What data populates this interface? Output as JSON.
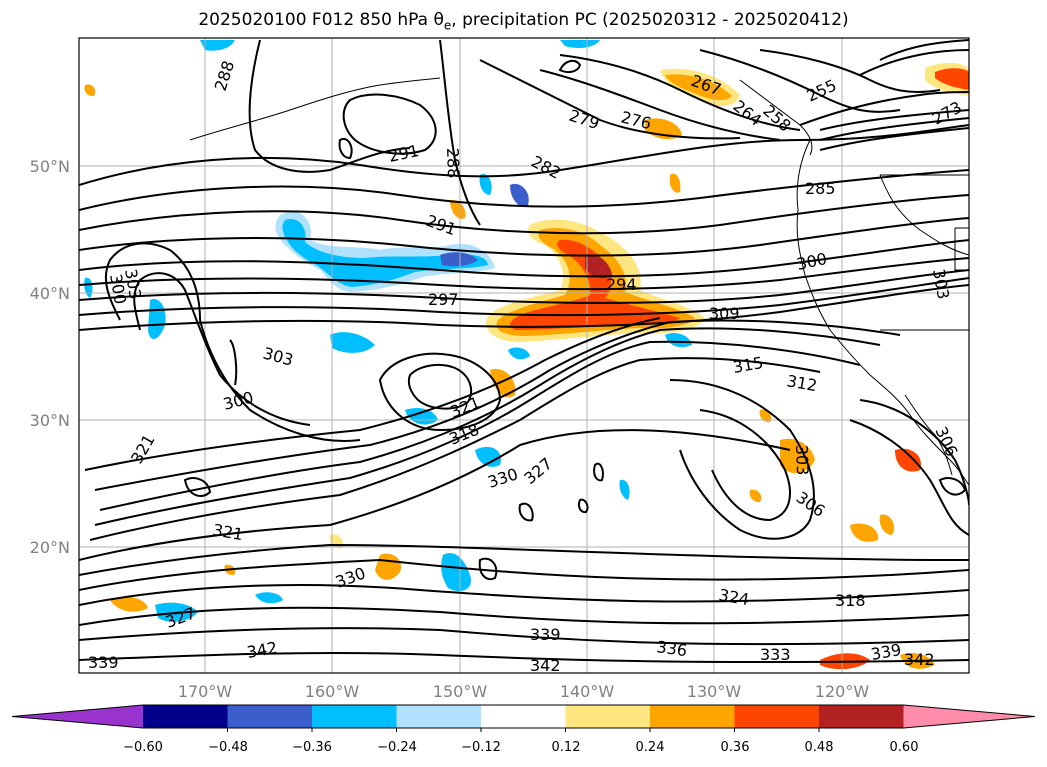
{
  "title_parts": {
    "main": "2025020100 F012 850 hPa θ",
    "sub": "e",
    "rest": ", precipitation PC (2025020312 - 2025020412)"
  },
  "axes": {
    "lat_ticks": [
      "20°N",
      "30°N",
      "40°N",
      "50°N"
    ],
    "lon_ticks": [
      "170°W",
      "160°W",
      "150°W",
      "140°W",
      "130°W",
      "120°W"
    ]
  },
  "contour_labels": [
    "288",
    "291",
    "288",
    "279",
    "276",
    "267",
    "264",
    "258",
    "255",
    "273",
    "282",
    "285",
    "291",
    "300",
    "294",
    "309",
    "297",
    "303",
    "300",
    "303",
    "303",
    "315",
    "312",
    "321",
    "318",
    "300",
    "321",
    "330",
    "327",
    "303",
    "306",
    "306",
    "321",
    "330",
    "324",
    "318",
    "327",
    "342",
    "339",
    "336",
    "333",
    "339",
    "342",
    "339",
    "342"
  ],
  "colorbar": {
    "ticks": [
      "−0.60",
      "−0.48",
      "−0.36",
      "−0.24",
      "−0.12",
      "0.12",
      "0.24",
      "0.36",
      "0.48",
      "0.60"
    ],
    "colors": [
      "#9a32cd",
      "#00008b",
      "#3a5fcd",
      "#00bfff",
      "#b0e2ff",
      "#ffffff",
      "#ffe680",
      "#ffa500",
      "#ff4500",
      "#b22222",
      "#ff8caa"
    ]
  }
}
